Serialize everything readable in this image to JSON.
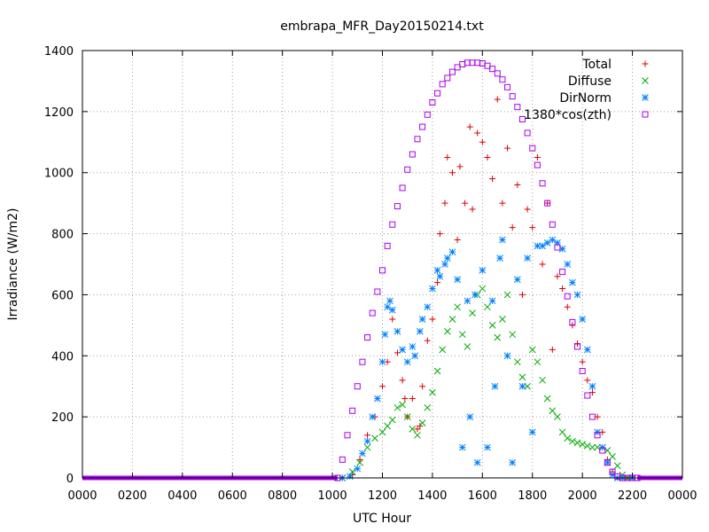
{
  "chart_data": {
    "type": "scatter",
    "title": "embrapa_MFR_Day20150214.txt",
    "xlabel": "UTC Hour",
    "ylabel": "Irradiance (W/m2)",
    "xlim": [
      0,
      24
    ],
    "ylim": [
      0,
      1400
    ],
    "x_ticks": [
      0,
      2,
      4,
      6,
      8,
      10,
      12,
      14,
      16,
      18,
      20,
      22,
      24
    ],
    "x_tick_labels": [
      "0000",
      "0200",
      "0400",
      "0600",
      "0800",
      "1000",
      "1200",
      "1400",
      "1600",
      "1800",
      "2000",
      "2200",
      "0000"
    ],
    "y_ticks": [
      0,
      200,
      400,
      600,
      800,
      1000,
      1200,
      1400
    ],
    "y_tick_labels": [
      "0",
      "200",
      "400",
      "600",
      "800",
      "1000",
      "1200",
      "1400"
    ],
    "grid": true,
    "legend_position": "top-right",
    "series": [
      {
        "name": "Total",
        "marker": "plus",
        "color": "#dd0000",
        "x": [
          10.4,
          10.8,
          11.1,
          11.4,
          11.7,
          12.0,
          12.2,
          12.4,
          12.6,
          12.8,
          12.9,
          13.0,
          13.2,
          13.4,
          13.5,
          13.6,
          13.8,
          14.0,
          14.2,
          14.3,
          14.5,
          14.6,
          14.8,
          15.0,
          15.1,
          15.3,
          15.5,
          15.6,
          15.8,
          16.0,
          16.2,
          16.4,
          16.6,
          16.8,
          17.0,
          17.2,
          17.4,
          17.6,
          17.8,
          18.0,
          18.2,
          18.4,
          18.6,
          18.8,
          19.0,
          19.2,
          19.4,
          19.6,
          19.8,
          20.0,
          20.2,
          20.4,
          20.6,
          20.8,
          21.0,
          21.2,
          21.5,
          21.8,
          22.0
        ],
        "y": [
          0,
          10,
          60,
          140,
          200,
          300,
          380,
          520,
          410,
          320,
          260,
          200,
          260,
          160,
          170,
          300,
          450,
          520,
          640,
          800,
          900,
          1050,
          1000,
          780,
          1020,
          900,
          1150,
          880,
          1130,
          1100,
          1050,
          980,
          1240,
          900,
          1080,
          820,
          960,
          600,
          880,
          820,
          1050,
          700,
          900,
          420,
          660,
          620,
          560,
          500,
          440,
          380,
          320,
          280,
          200,
          150,
          60,
          20,
          0,
          0,
          0
        ]
      },
      {
        "name": "Diffuse",
        "marker": "cross",
        "color": "#00aa00",
        "x": [
          10.4,
          10.8,
          11.1,
          11.4,
          11.7,
          12.0,
          12.2,
          12.4,
          12.6,
          12.8,
          13.0,
          13.2,
          13.4,
          13.6,
          13.8,
          14.0,
          14.2,
          14.4,
          14.6,
          14.8,
          15.0,
          15.2,
          15.4,
          15.6,
          15.8,
          16.0,
          16.2,
          16.4,
          16.6,
          16.8,
          17.0,
          17.2,
          17.4,
          17.6,
          17.8,
          18.0,
          18.2,
          18.4,
          18.6,
          18.8,
          19.0,
          19.2,
          19.4,
          19.6,
          19.8,
          20.0,
          20.2,
          20.4,
          20.6,
          20.8,
          21.0,
          21.2,
          21.4,
          21.6,
          21.8,
          22.0
        ],
        "y": [
          0,
          20,
          50,
          100,
          130,
          150,
          170,
          190,
          230,
          240,
          200,
          160,
          140,
          180,
          230,
          280,
          350,
          420,
          480,
          520,
          560,
          470,
          430,
          540,
          600,
          620,
          560,
          500,
          460,
          520,
          600,
          470,
          380,
          330,
          300,
          420,
          380,
          320,
          260,
          220,
          200,
          150,
          130,
          120,
          115,
          110,
          105,
          100,
          100,
          100,
          90,
          70,
          40,
          10,
          0,
          0
        ]
      },
      {
        "name": "DirNorm",
        "marker": "star",
        "color": "#0080ff",
        "x": [
          10.4,
          10.7,
          11.0,
          11.2,
          11.4,
          11.6,
          11.8,
          12.0,
          12.1,
          12.2,
          12.3,
          12.4,
          12.6,
          12.8,
          13.0,
          13.2,
          13.3,
          13.5,
          13.6,
          13.8,
          14.0,
          14.2,
          14.3,
          14.5,
          14.6,
          14.8,
          15.0,
          15.2,
          15.4,
          15.5,
          15.7,
          15.8,
          16.0,
          16.2,
          16.4,
          16.5,
          16.7,
          16.8,
          17.0,
          17.2,
          17.4,
          17.6,
          17.8,
          18.0,
          18.2,
          18.4,
          18.6,
          18.8,
          19.0,
          19.2,
          19.4,
          19.6,
          19.8,
          20.0,
          20.2,
          20.4,
          20.6,
          20.8,
          21.0,
          21.2,
          21.4,
          21.6,
          22.0
        ],
        "y": [
          0,
          5,
          30,
          80,
          120,
          200,
          260,
          380,
          470,
          560,
          580,
          550,
          480,
          420,
          380,
          430,
          400,
          480,
          520,
          560,
          620,
          680,
          660,
          700,
          720,
          740,
          650,
          100,
          580,
          200,
          600,
          50,
          680,
          100,
          580,
          300,
          720,
          780,
          400,
          50,
          650,
          300,
          720,
          150,
          760,
          760,
          770,
          780,
          770,
          750,
          700,
          640,
          600,
          520,
          420,
          300,
          150,
          100,
          50,
          10,
          0,
          0,
          0
        ]
      },
      {
        "name": "1380*cos(zth)",
        "marker": "square",
        "color": "#aa00ee",
        "x": [
          10.2,
          10.4,
          10.6,
          10.8,
          11.0,
          11.2,
          11.4,
          11.6,
          11.8,
          12.0,
          12.2,
          12.4,
          12.6,
          12.8,
          13.0,
          13.2,
          13.4,
          13.6,
          13.8,
          14.0,
          14.2,
          14.4,
          14.6,
          14.8,
          15.0,
          15.2,
          15.4,
          15.6,
          15.8,
          16.0,
          16.2,
          16.4,
          16.6,
          16.8,
          17.0,
          17.2,
          17.4,
          17.6,
          17.8,
          18.0,
          18.2,
          18.4,
          18.6,
          18.8,
          19.0,
          19.2,
          19.4,
          19.6,
          19.8,
          20.0,
          20.2,
          20.4,
          20.6,
          20.8,
          21.0,
          21.2,
          21.4,
          21.6,
          21.8,
          22.0,
          22.2
        ],
        "y": [
          0,
          60,
          140,
          220,
          300,
          380,
          460,
          540,
          610,
          680,
          760,
          830,
          890,
          950,
          1010,
          1060,
          1110,
          1150,
          1190,
          1230,
          1260,
          1290,
          1310,
          1330,
          1345,
          1355,
          1360,
          1360,
          1360,
          1358,
          1350,
          1340,
          1325,
          1305,
          1280,
          1250,
          1215,
          1175,
          1130,
          1080,
          1025,
          965,
          900,
          830,
          755,
          675,
          595,
          510,
          430,
          350,
          270,
          200,
          140,
          90,
          50,
          20,
          5,
          0,
          0,
          0,
          0
        ]
      }
    ]
  }
}
